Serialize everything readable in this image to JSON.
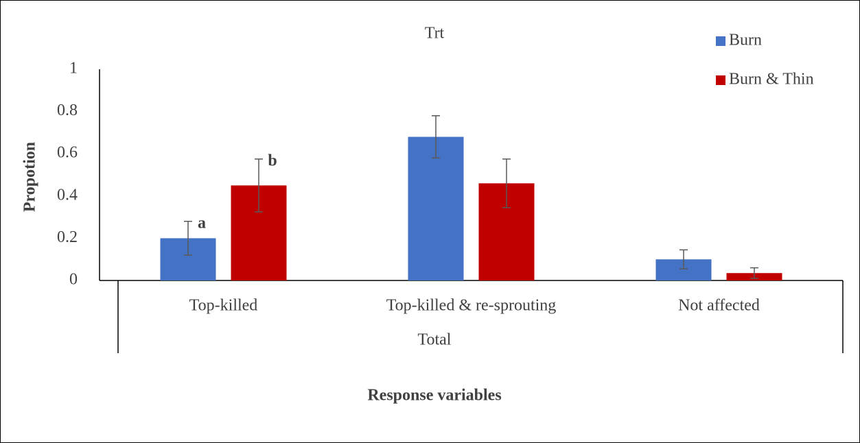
{
  "chart_data": {
    "type": "bar",
    "title": "Trt",
    "x_label": "Response variables",
    "x_group_label": "Total",
    "y_label": "Propotion",
    "categories": [
      "Top-killed",
      "Top-killed & re-sprouting",
      "Not affected"
    ],
    "series": [
      {
        "name": "Burn",
        "color": "#4472c4",
        "values": [
          0.2,
          0.68,
          0.1
        ],
        "errors": [
          0.08,
          0.1,
          0.045
        ],
        "letters": [
          "a",
          null,
          null
        ]
      },
      {
        "name": "Burn & Thin",
        "color": "#c00000",
        "values": [
          0.45,
          0.46,
          0.035
        ],
        "errors": [
          0.125,
          0.115,
          0.025
        ],
        "letters": [
          "b",
          null,
          null
        ]
      }
    ],
    "ylim": [
      0,
      1
    ],
    "yticks": [
      0,
      0.2,
      0.4,
      0.6,
      0.8,
      1
    ],
    "legend": "top-right",
    "grid": false
  }
}
